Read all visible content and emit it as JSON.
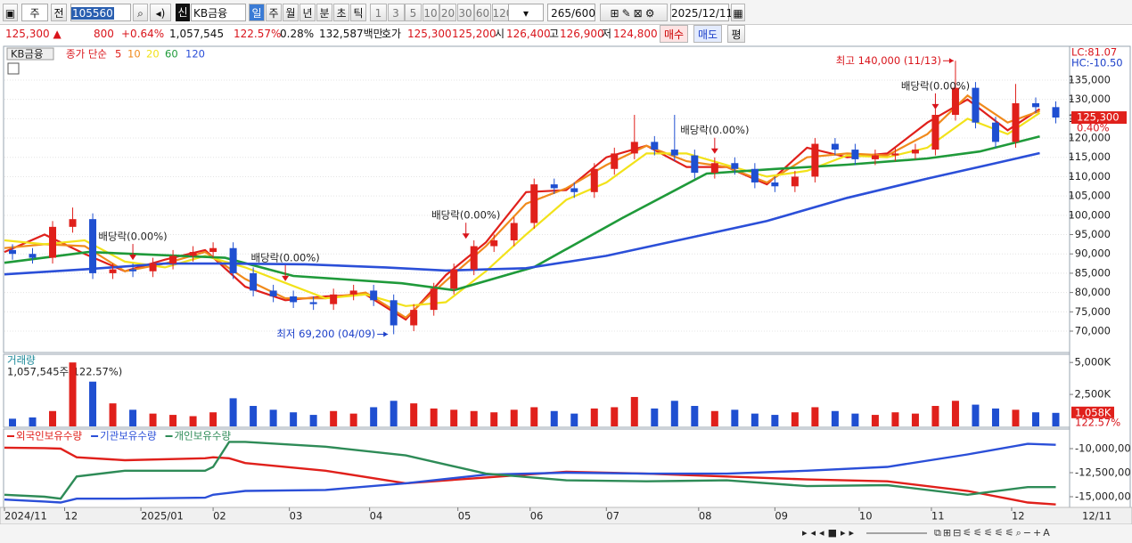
{
  "toolbar": {
    "period": "주",
    "prev": "전",
    "code": "105560",
    "flag": "신",
    "name": "KB금융",
    "units": [
      "일",
      "주",
      "월",
      "년",
      "분",
      "초",
      "틱"
    ],
    "minutes": [
      "1",
      "3",
      "5",
      "10",
      "20",
      "30",
      "60",
      "120"
    ],
    "count": "265",
    "max": "/600",
    "date": "2025/12/11"
  },
  "quote": {
    "price": "125,300 ▲",
    "change": "800",
    "rate": "+0.64%",
    "volume": "1,057,545",
    "vol_ratio": "122.57%",
    "turnover": "0.28%",
    "amount": "132,587백만",
    "ask_label": "호가",
    "ask": "125,300",
    "bid": "125,200",
    "open_label": "시",
    "open": "126,400",
    "high_label": "고",
    "high": "126,900",
    "low_label": "저",
    "low": "124,800",
    "buy": "매수",
    "sell": "매도",
    "eval": "평"
  },
  "chart_data": [
    {
      "type": "candlestick",
      "title": "KB금융",
      "subtitle": "종가 단순",
      "up_color": "#e0201b",
      "down_color": "#1f4fd1",
      "x": [
        2,
        7,
        12,
        17,
        22,
        27,
        32,
        37,
        42,
        47,
        52,
        57,
        62,
        67,
        72,
        77,
        82,
        87,
        92,
        97,
        102,
        107,
        112,
        117,
        122,
        127,
        132,
        137,
        142,
        147,
        152,
        157,
        162,
        167,
        172,
        177,
        182,
        187,
        192,
        197,
        202,
        207,
        212,
        217,
        222,
        227,
        232,
        237,
        242,
        247,
        252,
        257,
        262
      ],
      "open": [
        91000,
        90000,
        89000,
        97000,
        99000,
        85000,
        86000,
        85500,
        87500,
        89500,
        90500,
        91500,
        85000,
        80500,
        79000,
        77500,
        77000,
        79500,
        80500,
        78000,
        71500,
        75500,
        81000,
        86000,
        92000,
        93500,
        98000,
        108000,
        107000,
        106000,
        112000,
        116000,
        119000,
        117000,
        115500,
        111000,
        113500,
        112000,
        108500,
        107500,
        110000,
        118500,
        117000,
        114500,
        115500,
        116000,
        117000,
        126000,
        133000,
        124000,
        119000,
        129000,
        128000
      ],
      "high": [
        92500,
        91500,
        98500,
        102000,
        100500,
        87500,
        87500,
        89000,
        91000,
        92000,
        93000,
        93000,
        86500,
        82000,
        80500,
        79000,
        81000,
        82000,
        82000,
        79500,
        77000,
        82500,
        87500,
        93500,
        95000,
        99500,
        109500,
        109500,
        108500,
        113500,
        117500,
        126000,
        120500,
        126000,
        117000,
        115000,
        115000,
        113500,
        110000,
        111500,
        120000,
        120000,
        118500,
        117000,
        117500,
        118500,
        127500,
        140000,
        134500,
        125500,
        134000,
        130500,
        129500
      ],
      "low": [
        88500,
        87500,
        87500,
        95500,
        83500,
        83500,
        84000,
        84000,
        86000,
        88000,
        89000,
        83500,
        79000,
        77500,
        76000,
        75500,
        75500,
        78000,
        76500,
        69200,
        70000,
        74000,
        79500,
        84500,
        90500,
        92000,
        96500,
        105500,
        104500,
        104500,
        110500,
        114500,
        115500,
        114000,
        109500,
        109500,
        110500,
        107000,
        106000,
        106000,
        108500,
        115500,
        113000,
        113000,
        114000,
        114500,
        115500,
        124500,
        122500,
        117500,
        117500,
        126500,
        123800
      ],
      "close": [
        90000,
        89000,
        97000,
        99000,
        85000,
        86000,
        85500,
        87500,
        89500,
        90500,
        91500,
        85000,
        80500,
        79000,
        77500,
        77000,
        79500,
        80500,
        78000,
        71500,
        75500,
        81000,
        86000,
        92000,
        93500,
        98000,
        108000,
        107000,
        106000,
        112000,
        116000,
        119000,
        117000,
        115500,
        111000,
        113500,
        112000,
        108500,
        107500,
        110000,
        118500,
        117000,
        114500,
        115500,
        116000,
        117000,
        126000,
        133000,
        124000,
        119000,
        129000,
        128000,
        125300
      ],
      "lines": [
        {
          "name": "5",
          "color": "#e0201b",
          "x": [
            0,
            10,
            20,
            30,
            40,
            50,
            60,
            70,
            80,
            90,
            100,
            110,
            120,
            130,
            140,
            150,
            160,
            170,
            180,
            190,
            200,
            210,
            220,
            230,
            240,
            250,
            258
          ],
          "values": [
            90500,
            95000,
            90000,
            85500,
            88500,
            91000,
            81500,
            78000,
            79000,
            79500,
            73000,
            84500,
            93000,
            106000,
            106500,
            115000,
            118000,
            112500,
            112500,
            108000,
            117500,
            115000,
            116000,
            124000,
            130000,
            122000,
            127500
          ]
        },
        {
          "name": "10",
          "color": "#f08a1c",
          "x": [
            0,
            10,
            20,
            30,
            40,
            50,
            60,
            70,
            80,
            90,
            100,
            110,
            120,
            130,
            140,
            150,
            160,
            170,
            180,
            190,
            200,
            210,
            220,
            230,
            240,
            250,
            258
          ],
          "values": [
            91500,
            92500,
            92000,
            85500,
            87500,
            90500,
            83500,
            78500,
            78500,
            80000,
            73500,
            83000,
            92000,
            103000,
            107000,
            113000,
            118000,
            114000,
            112500,
            108500,
            115000,
            116000,
            115500,
            121000,
            131000,
            124000,
            127000
          ]
        },
        {
          "name": "20",
          "color": "#f2e21a",
          "x": [
            0,
            10,
            20,
            30,
            40,
            50,
            60,
            70,
            80,
            90,
            100,
            110,
            120,
            130,
            140,
            150,
            160,
            170,
            180,
            190,
            200,
            210,
            220,
            230,
            240,
            250,
            258
          ],
          "values": [
            93500,
            92500,
            93500,
            88000,
            86500,
            89500,
            86500,
            82500,
            78500,
            79500,
            76500,
            77500,
            85500,
            95000,
            104000,
            108500,
            116000,
            116000,
            113000,
            110000,
            111500,
            115500,
            115000,
            117500,
            125000,
            121000,
            126500
          ]
        },
        {
          "name": "60",
          "color": "#1f9a3a",
          "x": [
            0,
            21,
            55,
            72,
            99,
            112,
            132,
            154,
            175,
            192,
            210,
            230,
            243,
            258
          ],
          "values": [
            87700,
            90500,
            89000,
            84300,
            82400,
            80600,
            86600,
            99300,
            110800,
            112000,
            113100,
            114700,
            116500,
            120400
          ]
        },
        {
          "name": "120",
          "color": "#2b4fd8",
          "x": [
            0,
            20,
            40,
            55,
            75,
            95,
            110,
            130,
            150,
            170,
            190,
            210,
            230,
            245,
            258
          ],
          "values": [
            84700,
            86000,
            87500,
            87500,
            87300,
            86500,
            85700,
            86300,
            89500,
            94000,
            98500,
            104500,
            109500,
            113000,
            116100
          ]
        }
      ],
      "xlim": [
        0,
        265
      ],
      "ylim": [
        64700,
        143750
      ],
      "yticks": [
        {
          "value": 70000,
          "label": "70,000"
        },
        {
          "value": 75000,
          "label": "75,000"
        },
        {
          "value": 80000,
          "label": "80,000"
        },
        {
          "value": 85000,
          "label": "85,000"
        },
        {
          "value": 90000,
          "label": "90,000"
        },
        {
          "value": 95000,
          "label": "95,000"
        },
        {
          "value": 100000,
          "label": "100,000"
        },
        {
          "value": 105000,
          "label": "105,000"
        },
        {
          "value": 110000,
          "label": "110,000"
        },
        {
          "value": 115000,
          "label": "115,000"
        },
        {
          "value": 120000,
          "label": "120,000"
        },
        {
          "value": 125000,
          "label": "125,000"
        },
        {
          "value": 130000,
          "label": "130,000"
        },
        {
          "value": 135000,
          "label": "135,000"
        }
      ],
      "xticks": [
        {
          "value": 0,
          "label": "2024/11"
        },
        {
          "value": 15,
          "label": "12"
        },
        {
          "value": 34,
          "label": "2025/01"
        },
        {
          "value": 52,
          "label": "02"
        },
        {
          "value": 71,
          "label": "03"
        },
        {
          "value": 91,
          "label": "04"
        },
        {
          "value": 113,
          "label": "05"
        },
        {
          "value": 131,
          "label": "06"
        },
        {
          "value": 150,
          "label": "07"
        },
        {
          "value": 173,
          "label": "08"
        },
        {
          "value": 192,
          "label": "09"
        },
        {
          "value": 213,
          "label": "10"
        },
        {
          "value": 231,
          "label": "11"
        },
        {
          "value": 251,
          "label": "12"
        }
      ],
      "last_date": "12/11",
      "annotations": [
        {
          "text": "최고 140,000 (11/13)",
          "x": 237,
          "y": 140000,
          "color": "#d9141b",
          "arrow": "right"
        },
        {
          "text": "최저 69,200 (04/09)",
          "x": 96,
          "y": 69200,
          "color": "#1b3fc9",
          "arrow": "right"
        },
        {
          "text": "배당락(0.00%)",
          "x": 32,
          "y": 87500,
          "color": "#d9141b",
          "arrow": "down"
        },
        {
          "text": "배당락(0.00%)",
          "x": 70,
          "y": 82000,
          "color": "#d9141b",
          "arrow": "down"
        },
        {
          "text": "배당락(0.00%)",
          "x": 115,
          "y": 93000,
          "color": "#d9141b",
          "arrow": "down"
        },
        {
          "text": "배당락(0.00%)",
          "x": 177,
          "y": 115000,
          "color": "#d9141b",
          "arrow": "down"
        },
        {
          "text": "배당락(0.00%)",
          "x": 232,
          "y": 126500,
          "color": "#d9141b",
          "arrow": "down"
        }
      ],
      "grid": true,
      "right_labels": {
        "lc": "LC:81.07",
        "hc": "HC:-10.50",
        "price": "125,300",
        "rate": "0.40%"
      }
    },
    {
      "type": "bar",
      "title": "거래량",
      "subtitle": "1,057,545주(122.57%)",
      "x": [
        2,
        7,
        12,
        17,
        22,
        27,
        32,
        37,
        42,
        47,
        52,
        57,
        62,
        67,
        72,
        77,
        82,
        87,
        92,
        97,
        102,
        107,
        112,
        117,
        122,
        127,
        132,
        137,
        142,
        147,
        152,
        157,
        162,
        167,
        172,
        177,
        182,
        187,
        192,
        197,
        202,
        207,
        212,
        217,
        222,
        227,
        232,
        237,
        242,
        247,
        252,
        257,
        262
      ],
      "values": [
        600,
        700,
        1200,
        5000,
        3500,
        1800,
        1300,
        1000,
        900,
        800,
        1100,
        2200,
        1600,
        1300,
        1100,
        900,
        1200,
        1000,
        1500,
        2000,
        1800,
        1400,
        1300,
        1200,
        1100,
        1300,
        1500,
        1200,
        1000,
        1400,
        1500,
        2300,
        1400,
        2000,
        1600,
        1200,
        1300,
        1000,
        900,
        1100,
        1500,
        1200,
        1000,
        900,
        1100,
        1000,
        1600,
        2000,
        1700,
        1400,
        1300,
        1100,
        1058
      ],
      "xlim": [
        0,
        265
      ],
      "ylim": [
        0,
        5500
      ],
      "yticks": [
        {
          "value": 2500,
          "label": "2,500K"
        },
        {
          "value": 5000,
          "label": "5,000K"
        }
      ],
      "right_labels": {
        "value": "1,058K",
        "ratio": "122.57%"
      }
    },
    {
      "type": "line",
      "x": [
        0,
        10,
        14,
        18,
        30,
        50,
        52,
        56,
        60,
        80,
        100,
        120,
        140,
        160,
        180,
        200,
        220,
        240,
        255,
        262
      ],
      "xlim": [
        0,
        265
      ],
      "ylim": [
        -16110000,
        -8150000
      ],
      "yticks": [
        {
          "value": -10000000,
          "label": "-10,000,000"
        },
        {
          "value": -12500000,
          "label": "-12,500,000"
        },
        {
          "value": -15000000,
          "label": "-15,000,000"
        }
      ],
      "series": [
        {
          "name": "외국인보유수량",
          "color": "#e0201b",
          "values": [
            -9900000,
            -9950000,
            -10000000,
            -10900000,
            -11200000,
            -11000000,
            -10900000,
            -11000000,
            -11500000,
            -12300000,
            -13600000,
            -13000000,
            -12400000,
            -12600000,
            -12900000,
            -13200000,
            -13400000,
            -14400000,
            -15600000,
            -15800000
          ]
        },
        {
          "name": "기관보유수량",
          "color": "#2b4fd8",
          "values": [
            -15300000,
            -15500000,
            -15600000,
            -15200000,
            -15200000,
            -15100000,
            -14800000,
            -14600000,
            -14400000,
            -14300000,
            -13600000,
            -12700000,
            -12500000,
            -12600000,
            -12600000,
            -12300000,
            -11900000,
            -10600000,
            -9500000,
            -9600000
          ]
        },
        {
          "name": "개인보유수량",
          "color": "#2e8b57",
          "values": [
            -14800000,
            -15000000,
            -15200000,
            -12900000,
            -12300000,
            -12300000,
            -11900000,
            -9300000,
            -9300000,
            -9800000,
            -10700000,
            -12600000,
            -13300000,
            -13400000,
            -13300000,
            -13900000,
            -13800000,
            -14800000,
            -14000000,
            -14000000
          ]
        }
      ]
    }
  ]
}
